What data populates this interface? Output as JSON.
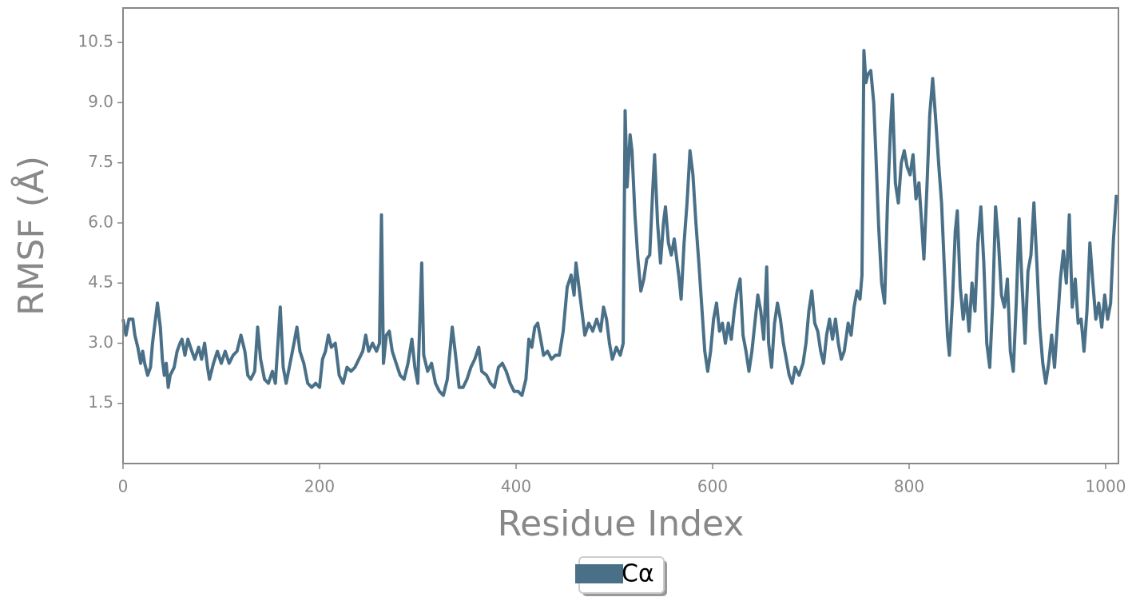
{
  "chart_data": {
    "type": "line",
    "xlabel": "Residue Index",
    "ylabel": "RMSF (Å)",
    "xlim": [
      0,
      1013
    ],
    "ylim": [
      0,
      11.36
    ],
    "xticks": [
      0,
      200,
      400,
      600,
      800,
      1000
    ],
    "yticks": [
      1.5,
      {
        "value": 3,
        "label": "3.0"
      },
      4.5,
      {
        "value": 6,
        "label": "6.0"
      },
      7.5,
      {
        "value": 9,
        "label": "9.0"
      },
      10.5
    ],
    "legend": "bottom",
    "x": [
      0,
      3,
      6,
      10,
      12,
      15,
      18,
      20,
      22,
      25,
      28,
      30,
      33,
      35,
      38,
      40,
      42,
      44,
      46,
      48,
      52,
      55,
      58,
      60,
      63,
      66,
      70,
      73,
      77,
      80,
      83,
      86,
      88,
      92,
      96,
      100,
      104,
      108,
      112,
      116,
      120,
      124,
      127,
      130,
      134,
      137,
      140,
      144,
      148,
      152,
      155,
      160,
      163,
      166,
      170,
      174,
      177,
      180,
      184,
      188,
      192,
      196,
      200,
      203,
      206,
      209,
      212,
      216,
      220,
      224,
      228,
      232,
      236,
      240,
      244,
      247,
      250,
      254,
      258,
      261,
      263,
      265,
      268,
      271,
      274,
      278,
      282,
      286,
      290,
      294,
      297,
      300,
      304,
      306,
      310,
      314,
      318,
      322,
      326,
      330,
      335,
      338,
      342,
      346,
      350,
      354,
      358,
      362,
      365,
      370,
      374,
      378,
      382,
      386,
      390,
      394,
      398,
      402,
      406,
      410,
      413,
      416,
      419,
      422,
      425,
      428,
      432,
      436,
      440,
      444,
      448,
      452,
      456,
      459,
      461,
      464,
      467,
      470,
      474,
      478,
      482,
      486,
      489,
      492,
      495,
      498,
      502,
      506,
      509,
      511,
      513,
      516,
      518,
      521,
      524,
      527,
      530,
      533,
      536,
      539,
      541,
      544,
      547,
      550,
      552,
      555,
      558,
      561,
      564,
      566,
      568,
      571,
      574,
      577,
      580,
      583,
      586,
      589,
      592,
      595,
      598,
      601,
      604,
      607,
      610,
      613,
      616,
      619,
      622,
      625,
      628,
      631,
      634,
      637,
      640,
      643,
      646,
      649,
      652,
      655,
      657,
      660,
      663,
      666,
      669,
      672,
      675,
      678,
      681,
      684,
      688,
      692,
      695,
      698,
      701,
      704,
      707,
      710,
      713,
      716,
      719,
      722,
      725,
      728,
      731,
      734,
      738,
      741,
      744,
      747,
      750,
      752,
      754,
      756,
      758,
      761,
      764,
      766,
      769,
      772,
      775,
      778,
      781,
      783,
      786,
      789,
      792,
      795,
      798,
      801,
      804,
      807,
      810,
      813,
      815,
      818,
      821,
      824,
      827,
      830,
      833,
      836,
      839,
      841,
      844,
      847,
      849,
      852,
      855,
      858,
      861,
      864,
      867,
      870,
      873,
      876,
      879,
      882,
      885,
      888,
      891,
      894,
      897,
      900,
      903,
      906,
      909,
      912,
      915,
      918,
      921,
      924,
      927,
      930,
      933,
      936,
      939,
      942,
      945,
      948,
      951,
      954,
      957,
      960,
      963,
      966,
      969,
      972,
      975,
      978,
      981,
      984,
      987,
      990,
      993,
      996,
      999,
      1002,
      1005,
      1008,
      1011
    ],
    "series": [
      {
        "name": "Cα",
        "color": "#4a7088",
        "values": [
          3.6,
          3.2,
          3.6,
          3.6,
          3.2,
          2.9,
          2.5,
          2.8,
          2.5,
          2.2,
          2.4,
          3.0,
          3.6,
          4.0,
          3.4,
          2.6,
          2.2,
          2.5,
          1.9,
          2.2,
          2.4,
          2.8,
          3.0,
          3.1,
          2.7,
          3.1,
          2.8,
          2.6,
          2.9,
          2.6,
          3.0,
          2.4,
          2.1,
          2.5,
          2.8,
          2.5,
          2.8,
          2.5,
          2.7,
          2.8,
          3.2,
          2.8,
          2.2,
          2.1,
          2.3,
          3.4,
          2.6,
          2.1,
          2.0,
          2.3,
          2.0,
          3.9,
          2.4,
          2.0,
          2.5,
          3.0,
          3.4,
          2.8,
          2.5,
          2.0,
          1.9,
          2.0,
          1.9,
          2.6,
          2.8,
          3.2,
          2.9,
          3.0,
          2.2,
          2.0,
          2.4,
          2.3,
          2.4,
          2.6,
          2.8,
          3.2,
          2.8,
          3.0,
          2.8,
          3.0,
          6.2,
          2.5,
          3.2,
          3.3,
          2.8,
          2.5,
          2.2,
          2.1,
          2.5,
          3.1,
          2.4,
          2.0,
          5.0,
          2.7,
          2.3,
          2.5,
          2.0,
          1.8,
          1.7,
          2.1,
          3.4,
          2.8,
          1.9,
          1.9,
          2.1,
          2.4,
          2.6,
          2.9,
          2.3,
          2.2,
          2.0,
          1.9,
          2.4,
          2.5,
          2.3,
          2.0,
          1.8,
          1.8,
          1.7,
          2.1,
          3.1,
          2.9,
          3.4,
          3.5,
          3.1,
          2.7,
          2.8,
          2.6,
          2.7,
          2.7,
          3.3,
          4.4,
          4.7,
          4.2,
          5.0,
          4.4,
          3.8,
          3.2,
          3.5,
          3.3,
          3.6,
          3.3,
          3.9,
          3.6,
          3.0,
          2.6,
          2.9,
          2.7,
          3.0,
          8.8,
          6.9,
          8.2,
          7.8,
          6.2,
          5.1,
          4.3,
          4.6,
          5.1,
          5.2,
          6.8,
          7.7,
          6.0,
          5.0,
          6.0,
          6.4,
          5.5,
          5.2,
          5.6,
          5.0,
          4.6,
          4.1,
          5.5,
          6.5,
          7.8,
          7.2,
          6.0,
          5.0,
          3.9,
          2.8,
          2.3,
          2.8,
          3.6,
          4.0,
          3.3,
          3.5,
          3.0,
          3.5,
          3.1,
          3.8,
          4.3,
          4.6,
          3.2,
          2.8,
          2.3,
          2.8,
          3.5,
          4.2,
          3.8,
          3.1,
          4.9,
          3.0,
          2.4,
          3.5,
          4.0,
          3.6,
          3.0,
          2.6,
          2.2,
          2.0,
          2.4,
          2.2,
          2.5,
          3.0,
          3.8,
          4.3,
          3.5,
          3.3,
          2.8,
          2.5,
          3.2,
          3.6,
          3.1,
          3.6,
          3.0,
          2.6,
          2.8,
          3.5,
          3.2,
          3.9,
          4.3,
          4.1,
          4.7,
          10.3,
          9.5,
          9.7,
          9.8,
          9.0,
          7.8,
          5.9,
          4.5,
          4.0,
          6.5,
          8.3,
          9.2,
          7.0,
          6.5,
          7.5,
          7.8,
          7.4,
          7.2,
          7.7,
          6.6,
          7.0,
          5.9,
          5.1,
          6.8,
          8.7,
          9.6,
          8.6,
          7.5,
          6.5,
          4.8,
          3.2,
          2.7,
          4.0,
          5.8,
          6.3,
          4.4,
          3.6,
          4.2,
          3.3,
          4.5,
          3.8,
          5.5,
          6.4,
          5.0,
          3.0,
          2.4,
          4.0,
          6.4,
          5.5,
          4.2,
          3.9,
          4.6,
          2.8,
          2.3,
          4.0,
          6.1,
          4.4,
          3.0,
          4.8,
          5.2,
          6.5,
          5.0,
          3.4,
          2.5,
          2.0,
          2.5,
          3.2,
          2.4,
          3.5,
          4.6,
          5.3,
          4.5,
          6.2,
          3.9,
          4.6,
          3.5,
          3.6,
          2.8,
          3.8,
          5.5,
          4.5,
          3.6,
          4.0,
          3.4,
          4.2,
          3.6,
          4.0,
          5.6,
          6.7
        ]
      }
    ]
  }
}
